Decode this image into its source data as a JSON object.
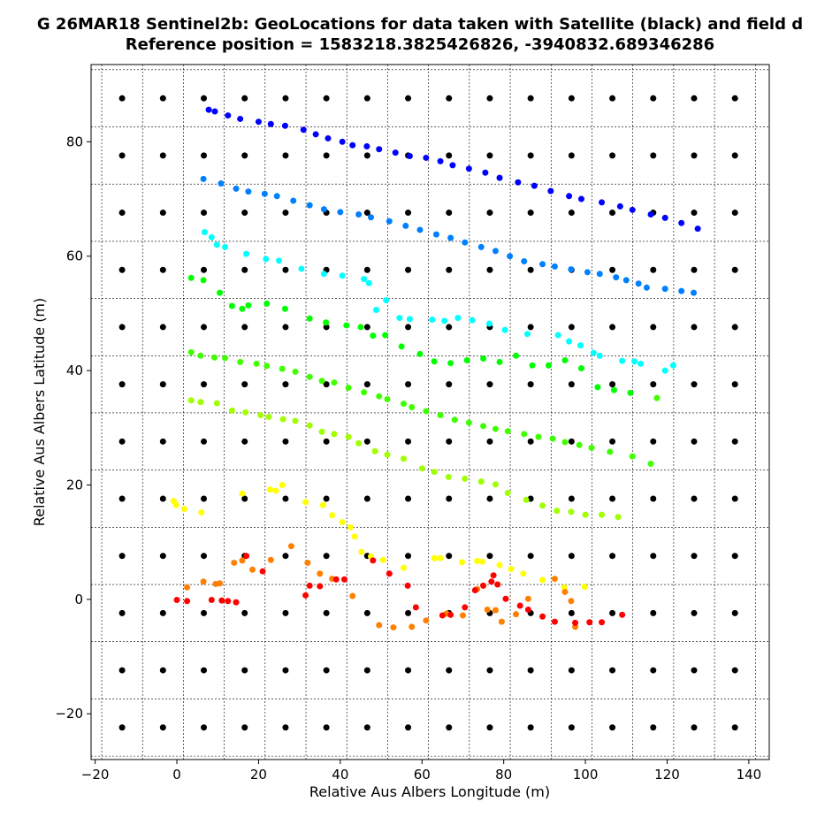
{
  "chart_data": {
    "type": "scatter",
    "title": "G 26MAR18  Sentinel2b: GeoLocations for data taken with Satellite (black) and field d",
    "subtitle": "Reference position = 1583218.3825426826, -3940832.689346286",
    "xlabel": "Relative Aus Albers Longitude (m)",
    "ylabel": "Relative Aus Albers Latitude (m)",
    "xlim": [
      -21,
      145
    ],
    "ylim": [
      -28,
      93.5
    ],
    "xticks": [
      -20,
      0,
      20,
      40,
      60,
      80,
      100,
      120,
      140
    ],
    "xtick_labels": [
      "−20",
      "0",
      "20",
      "40",
      "60",
      "80",
      "100",
      "120",
      "140"
    ],
    "yticks": [
      -20,
      0,
      20,
      40,
      60,
      80
    ],
    "ytick_labels": [
      "−20",
      "0",
      "20",
      "40",
      "60",
      "80"
    ],
    "grid": "dashed",
    "grid_x": [
      -18.4,
      -8.4,
      1.6,
      11.6,
      21.6,
      31.6,
      41.6,
      51.6,
      61.6,
      71.6,
      81.6,
      91.6,
      101.6,
      111.6,
      121.6,
      131.6,
      141.6
    ],
    "grid_y": [
      -27.4,
      -17.4,
      -7.4,
      2.6,
      12.6,
      22.6,
      32.6,
      42.6,
      52.6,
      62.6,
      72.6,
      82.6,
      92.6
    ],
    "series": [
      {
        "color": "#000000",
        "grid": {
          "x_start": -13.4,
          "x_step": 10,
          "x_count": 16,
          "y_start": -22.4,
          "y_step": 10,
          "y_count": 12
        }
      },
      {
        "color": "#0000ff",
        "x": [
          7.8,
          9.3,
          12.5,
          15.5,
          20,
          23,
          26.5,
          31,
          34,
          37,
          40.5,
          43,
          46.5,
          49.5,
          53.5,
          57,
          61,
          64.5,
          67.5,
          71.5,
          75.5,
          79,
          83.5,
          87.5,
          91.5,
          96,
          99,
          104,
          108.5,
          111.5,
          116,
          119.5,
          123.5,
          127.5
        ],
        "y": [
          85.6,
          85.3,
          84.6,
          84,
          83.5,
          83.1,
          82.8,
          82.1,
          81.3,
          80.6,
          80,
          79.4,
          79.2,
          78.7,
          78.1,
          77.5,
          77.2,
          76.6,
          75.9,
          75.3,
          74.6,
          73.7,
          72.9,
          72.3,
          71.4,
          70.5,
          70,
          69.4,
          68.7,
          68.1,
          67.3,
          66.7,
          65.8,
          64.8
        ]
      },
      {
        "color": "#0080ff",
        "x": [
          6.5,
          10.8,
          14.5,
          17.5,
          21.5,
          24.5,
          28.5,
          32.5,
          36,
          40,
          44.5,
          47.5,
          52,
          56,
          59.5,
          63.5,
          67,
          70.5,
          74.5,
          78,
          81.5,
          85,
          89.5,
          92.5,
          96.5,
          100.5,
          103.5,
          107.5,
          110,
          113,
          115,
          119.5,
          123.5,
          126.5
        ],
        "y": [
          73.5,
          72.7,
          71.8,
          71.3,
          70.9,
          70.5,
          69.7,
          68.9,
          68.2,
          67.7,
          67.3,
          66.8,
          66.1,
          65.3,
          64.6,
          63.8,
          63.2,
          62.4,
          61.6,
          60.9,
          60,
          59.1,
          58.6,
          58.2,
          57.7,
          57.2,
          56.9,
          56.3,
          55.8,
          55.2,
          54.5,
          54.3,
          53.9,
          53.6
        ]
      },
      {
        "color": "#00ffff",
        "x": [
          6.8,
          8.5,
          9.8,
          11.8,
          17,
          21.8,
          25,
          30.5,
          36,
          40.5,
          45.8,
          47,
          48.8,
          51.2,
          54.5,
          57,
          62.5,
          65.5,
          68.8,
          72.3,
          76.5,
          80.3,
          85.8,
          93.3,
          96,
          98.8,
          102,
          103.5,
          109,
          112,
          113.5,
          119.5,
          121.5
        ],
        "y": [
          64.2,
          63.3,
          62,
          61.6,
          60.4,
          59.5,
          59.2,
          57.8,
          56.9,
          56.6,
          56,
          55.3,
          50.6,
          52.3,
          49.2,
          49,
          48.9,
          48.7,
          49.2,
          48.8,
          48.2,
          47.1,
          46.4,
          46.2,
          45.1,
          44.4,
          43.1,
          42.6,
          41.7,
          41.6,
          41.2,
          40,
          40.9
        ]
      },
      {
        "color": "#00ff00",
        "x": [
          3.5,
          6.5,
          10.5,
          13.5,
          17.5,
          16,
          22,
          26.5,
          32.5,
          36.5,
          41.5,
          45,
          48,
          51,
          55,
          59.5,
          63,
          67,
          71,
          75,
          79,
          83,
          87,
          91,
          95,
          99,
          103,
          107,
          111
        ],
        "y": [
          56.2,
          55.8,
          53.6,
          51.3,
          51.4,
          50.8,
          51.7,
          50.8,
          49.1,
          48.4,
          47.9,
          47.6,
          46.1,
          46.2,
          44.2,
          42.9,
          41.6,
          41.3,
          41.8,
          42.1,
          41.5,
          42.6,
          40.9,
          40.9,
          41.8,
          40.4,
          37.1,
          36.6,
          36.1
        ]
      },
      {
        "color": "#40ff00",
        "x": [
          3.5,
          5.8,
          9.2,
          11.8,
          15.5,
          19.5,
          22,
          25.8,
          29,
          32.5,
          35.5,
          38.5,
          42,
          45.8,
          49.5,
          51.5,
          55.5,
          57.5,
          61,
          64.5,
          68,
          71.5,
          75,
          78,
          81,
          85,
          88.5,
          92,
          95,
          98.5,
          101.5,
          106,
          111.5,
          116,
          117.5
        ],
        "y": [
          43.2,
          42.6,
          42.3,
          42.2,
          41.5,
          41.2,
          40.8,
          40.3,
          39.8,
          38.9,
          38.2,
          37.9,
          37,
          36.2,
          35.5,
          35,
          34.2,
          33.6,
          32.9,
          32.2,
          31.4,
          30.9,
          30.3,
          29.8,
          29.4,
          28.9,
          28.4,
          28.1,
          27.5,
          27,
          26.5,
          25.8,
          25,
          23.7,
          35.2
        ]
      },
      {
        "color": "#a0ff00",
        "x": [
          3.5,
          5.8,
          9.8,
          13.5,
          16.8,
          20.5,
          22.5,
          26,
          29,
          32.5,
          35.5,
          38.5,
          42,
          44.5,
          48.5,
          51.5,
          55.5,
          60,
          63,
          66.5,
          70.5,
          74.5,
          78,
          81,
          85.5,
          89.5,
          93,
          96.5,
          100,
          104,
          108
        ],
        "y": [
          34.8,
          34.5,
          34.3,
          33,
          32.7,
          32.2,
          31.9,
          31.5,
          31.2,
          30.4,
          29.3,
          28.9,
          28.4,
          27.3,
          25.9,
          25.3,
          24.6,
          22.9,
          22.3,
          21.4,
          21.1,
          20.6,
          20.1,
          18.6,
          17.4,
          16.4,
          15.5,
          15.3,
          14.8,
          14.8,
          14.4
        ]
      },
      {
        "color": "#ffff00",
        "x": [
          -0.8,
          -0.2,
          1.8,
          6,
          16,
          22.8,
          24.2,
          25.8,
          31.5,
          35.8,
          38,
          40.5,
          42.5,
          43.5,
          45.2,
          47.5,
          50.5,
          55.5,
          63,
          64.5,
          69.8,
          73.5,
          74.8,
          79,
          81.8,
          84.8,
          89.5,
          94.8,
          99.8
        ],
        "y": [
          17.2,
          16.5,
          15.8,
          15.2,
          18.5,
          19.2,
          19,
          20,
          17,
          16.5,
          14.7,
          13.5,
          12.6,
          11,
          8.3,
          7.5,
          6.9,
          5.5,
          7.2,
          7.2,
          6.5,
          6.7,
          6.6,
          6,
          5.3,
          4.5,
          3.4,
          2.1,
          2.2
        ]
      },
      {
        "color": "#ff8000",
        "x": [
          2.5,
          6.5,
          9.5,
          10.5,
          14,
          16,
          18.5,
          23,
          28,
          32,
          35,
          38,
          43,
          49.5,
          53,
          57.5,
          61,
          66,
          70,
          73.5,
          76,
          78,
          79.5,
          83,
          86,
          92.5,
          95,
          96.5,
          97.5
        ],
        "y": [
          2.1,
          3.1,
          2.7,
          2.8,
          6.4,
          6.8,
          5.2,
          6.9,
          9.3,
          6.4,
          4.5,
          3.6,
          0.6,
          -4.5,
          -4.9,
          -4.8,
          -3.7,
          -2.5,
          -2.8,
          1.8,
          -1.8,
          -1.9,
          -3.9,
          -2.6,
          0.1,
          3.6,
          1.3,
          -0.3,
          -4.8
        ]
      },
      {
        "color": "#ff0000",
        "x": [
          0,
          2.5,
          8.5,
          11,
          12.5,
          14.5,
          17,
          21,
          31.5,
          32.5,
          35,
          39,
          41,
          48,
          52,
          56.5,
          58.5,
          65,
          67,
          70.5,
          73,
          75,
          77,
          77.5,
          78.5,
          80.5,
          84,
          86,
          89.5,
          92.5,
          97.5,
          101,
          104,
          109
        ],
        "y": [
          -0.1,
          -0.3,
          -0.1,
          -0.2,
          -0.3,
          -0.5,
          7.6,
          4.9,
          0.7,
          2.4,
          2.3,
          3.5,
          3.5,
          6.8,
          4.5,
          2.4,
          -1.4,
          -2.8,
          -2.7,
          -1.4,
          1.6,
          2.4,
          3.1,
          4.2,
          2.6,
          0.1,
          -1.1,
          -1.8,
          -3,
          -3.9,
          -4.1,
          -4,
          -4,
          -2.7
        ]
      }
    ]
  }
}
